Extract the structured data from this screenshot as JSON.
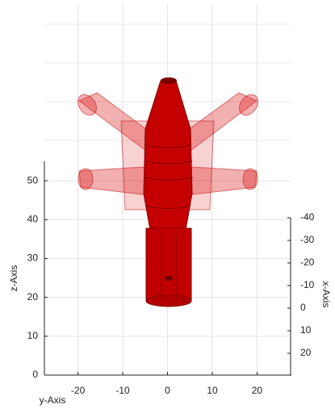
{
  "chart_data": {
    "type": "surface3d",
    "xlabel": "x-Axis",
    "ylabel": "y-Axis",
    "zlabel": "z-Axis",
    "xlim": [
      -40,
      30
    ],
    "xticks": [
      -40,
      -30,
      -20,
      -10,
      0,
      10,
      20
    ],
    "ylim": [
      -27.5,
      27.5
    ],
    "yticks": [
      -20,
      -10,
      0,
      10,
      20
    ],
    "zlim": [
      0,
      55
    ],
    "zticks": [
      0,
      10,
      20,
      30,
      40,
      50
    ],
    "grid": true,
    "color": "#cc0000"
  }
}
